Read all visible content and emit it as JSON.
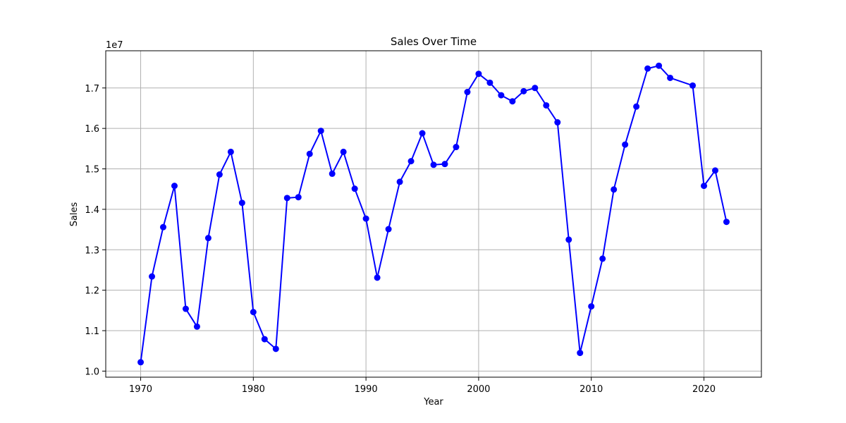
{
  "chart_data": {
    "type": "line",
    "title": "Sales Over Time",
    "xlabel": "Year",
    "ylabel": "Sales",
    "y_offset_label": "1e7",
    "xlim": [
      1966.9,
      2025.1
    ],
    "ylim": [
      9850000,
      17920000
    ],
    "x_ticks": [
      1970,
      1980,
      1990,
      2000,
      2010,
      2020
    ],
    "y_ticks": [
      {
        "value": 10000000,
        "label": "1.0"
      },
      {
        "value": 11000000,
        "label": "1.1"
      },
      {
        "value": 12000000,
        "label": "1.2"
      },
      {
        "value": 13000000,
        "label": "1.3"
      },
      {
        "value": 14000000,
        "label": "1.4"
      },
      {
        "value": 15000000,
        "label": "1.5"
      },
      {
        "value": 16000000,
        "label": "1.6"
      },
      {
        "value": 17000000,
        "label": "1.7"
      }
    ],
    "grid": true,
    "series": [
      {
        "color": "#0000ff",
        "marker": "circle",
        "x": [
          1970,
          1971,
          1972,
          1973,
          1974,
          1975,
          1976,
          1977,
          1978,
          1979,
          1980,
          1981,
          1982,
          1983,
          1984,
          1985,
          1986,
          1987,
          1988,
          1989,
          1990,
          1991,
          1992,
          1993,
          1994,
          1995,
          1996,
          1997,
          1998,
          1999,
          2000,
          2001,
          2002,
          2003,
          2004,
          2005,
          2006,
          2007,
          2008,
          2009,
          2010,
          2011,
          2012,
          2013,
          2014,
          2015,
          2016,
          2017,
          2019,
          2020,
          2021,
          2022
        ],
        "y": [
          10220000,
          12340000,
          13560000,
          14580000,
          11540000,
          11100000,
          13290000,
          14860000,
          15420000,
          14160000,
          11460000,
          10790000,
          10550000,
          14280000,
          14300000,
          15370000,
          15940000,
          14880000,
          15420000,
          14510000,
          13770000,
          12310000,
          13510000,
          14680000,
          15190000,
          15880000,
          15100000,
          15120000,
          15540000,
          16900000,
          17350000,
          17130000,
          16820000,
          16670000,
          16920000,
          17000000,
          16570000,
          16150000,
          13250000,
          10450000,
          11600000,
          12780000,
          14490000,
          15600000,
          16540000,
          17480000,
          17550000,
          17250000,
          17060000,
          14580000,
          14960000,
          13690000
        ]
      }
    ]
  }
}
